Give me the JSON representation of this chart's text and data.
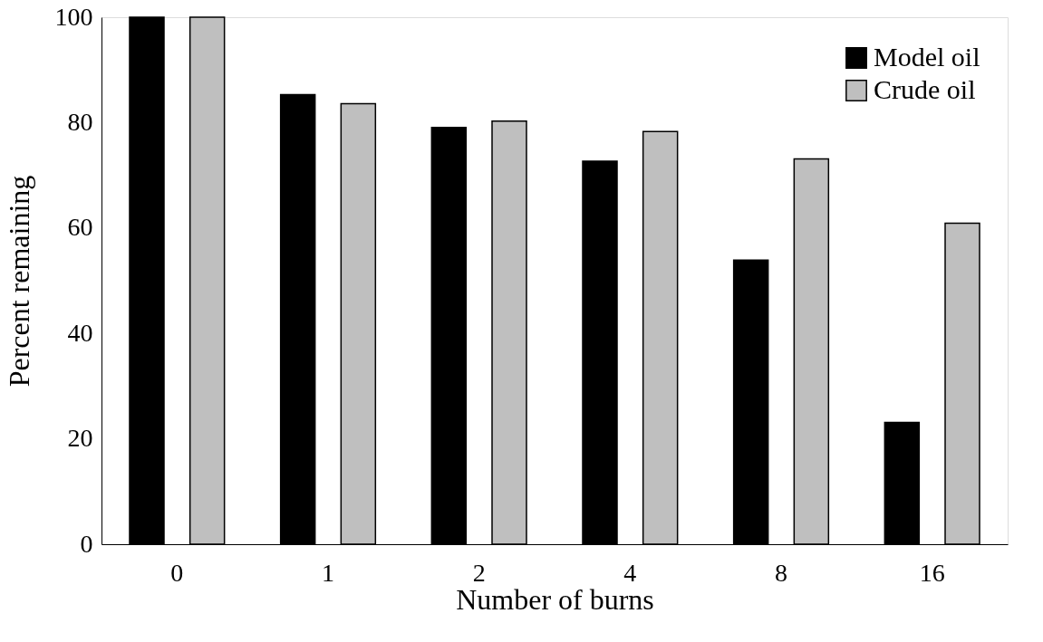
{
  "chart_data": {
    "type": "bar",
    "xlabel": "Number of burns",
    "ylabel": "Percent remaining",
    "categories": [
      "0",
      "1",
      "2",
      "4",
      "8",
      "16"
    ],
    "series": [
      {
        "name": "Model oil",
        "color": "#000000",
        "values": [
          100,
          85.3,
          79.1,
          72.7,
          53.9,
          23.1
        ]
      },
      {
        "name": "Crude oil",
        "color": "#bfbfbf",
        "values": [
          100,
          83.6,
          80.3,
          78.3,
          73.1,
          60.9
        ]
      }
    ],
    "ylim": [
      0,
      100
    ],
    "yticks": [
      0,
      20,
      40,
      60,
      80,
      100
    ],
    "grid": false,
    "legend": "top right"
  }
}
